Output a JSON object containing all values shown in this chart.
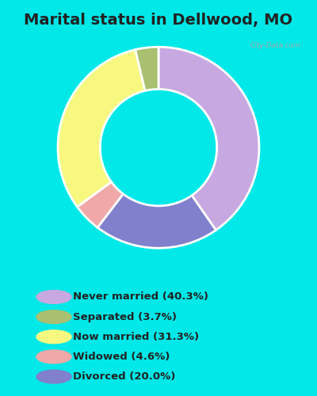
{
  "title": "Marital status in Dellwood, MO",
  "wedge_order": [
    "Never married",
    "Divorced",
    "Widowed",
    "Now married",
    "Separated"
  ],
  "values": [
    40.3,
    20.0,
    4.6,
    31.3,
    3.7
  ],
  "colors": [
    "#c8a8e0",
    "#8080cc",
    "#f0a8a8",
    "#f8f880",
    "#a8c070"
  ],
  "legend_labels": [
    "Never married (40.3%)",
    "Separated (3.7%)",
    "Now married (31.3%)",
    "Widowed (4.6%)",
    "Divorced (20.0%)"
  ],
  "legend_colors": [
    "#c8a8e0",
    "#a8c070",
    "#f8f880",
    "#f0a8a8",
    "#8080cc"
  ],
  "bg_cyan": "#00e8e8",
  "bg_chart": "#d8eedd",
  "donut_width": 0.42,
  "title_fontsize": 14,
  "watermark": "City-Data.com"
}
